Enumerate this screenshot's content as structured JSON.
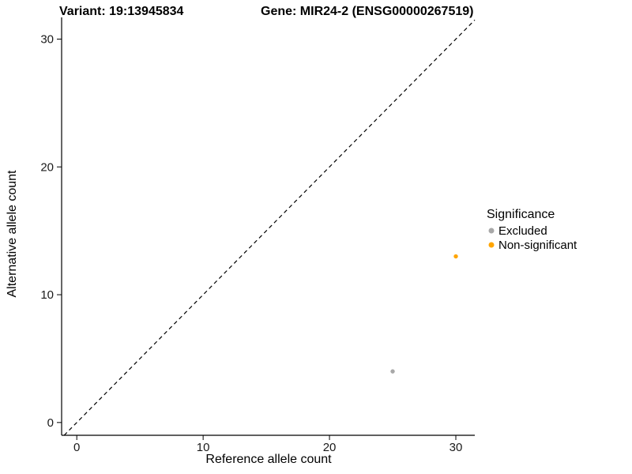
{
  "titles": {
    "variant": "Variant: 19:13945834",
    "gene": "Gene: MIR24-2 (ENSG00000267519)"
  },
  "legend": {
    "title": "Significance",
    "items": [
      {
        "label": "Excluded",
        "color": "#A8A8A8"
      },
      {
        "label": "Non-significant",
        "color": "#FFA500"
      }
    ]
  },
  "chart_data": {
    "type": "scatter",
    "title": "Variant: 19:13945834 / Gene: MIR24-2 (ENSG00000267519)",
    "xlabel": "Reference allele count",
    "ylabel": "Alternative allele count",
    "xlim": [
      -1.2,
      31.5
    ],
    "ylim": [
      -1.0,
      31.7
    ],
    "x_ticks": [
      0,
      10,
      20,
      30
    ],
    "y_ticks": [
      0,
      10,
      20,
      30
    ],
    "grid": false,
    "legend_position": "right",
    "reference_line": {
      "type": "identity",
      "style": "dashed",
      "color": "#000000"
    },
    "series": [
      {
        "name": "Excluded",
        "color": "#A8A8A8",
        "points": [
          [
            25,
            4
          ]
        ]
      },
      {
        "name": "Non-significant",
        "color": "#FFA500",
        "points": [
          [
            30,
            13
          ]
        ]
      }
    ]
  }
}
